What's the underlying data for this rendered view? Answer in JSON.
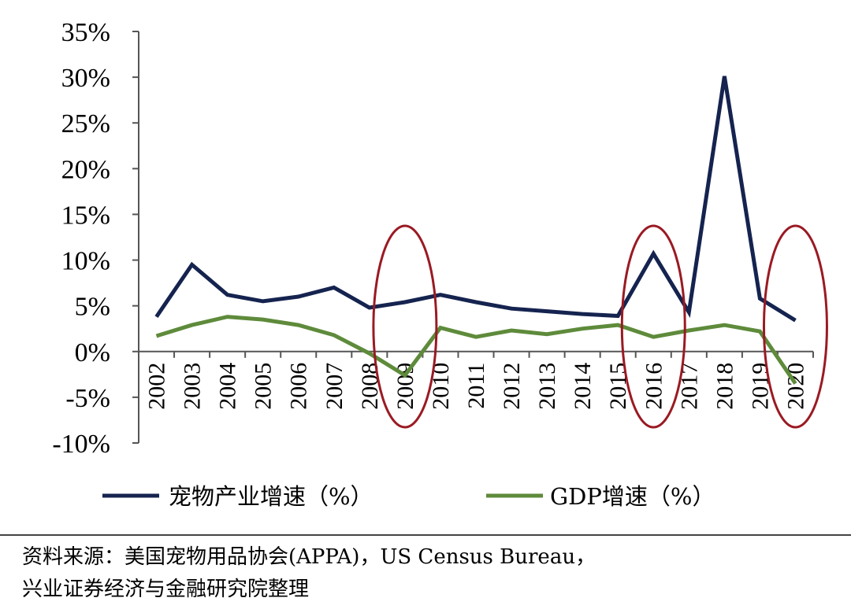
{
  "chart_data": {
    "type": "line",
    "title": "",
    "xlabel": "",
    "ylabel": "",
    "categories": [
      "2002",
      "2003",
      "2004",
      "2005",
      "2006",
      "2007",
      "2008",
      "2009",
      "2010",
      "2011",
      "2012",
      "2013",
      "2014",
      "2015",
      "2016",
      "2017",
      "2018",
      "2019",
      "2020"
    ],
    "ylim": [
      -10,
      35
    ],
    "ytick_values": [
      35,
      30,
      25,
      20,
      15,
      10,
      5,
      0,
      -5,
      -10
    ],
    "ytick_labels": [
      "35%",
      "30%",
      "25%",
      "20%",
      "15%",
      "10%",
      "5%",
      "0%",
      "-5%",
      "-10%"
    ],
    "series": [
      {
        "name": "宠物产业增速（%）",
        "color": "#15234f",
        "values": [
          3.8,
          9.5,
          6.2,
          5.5,
          6.0,
          7.0,
          4.8,
          5.4,
          6.2,
          5.4,
          4.7,
          4.4,
          4.1,
          3.9,
          10.7,
          4.3,
          30.1,
          5.8,
          3.4
        ]
      },
      {
        "name": "GDP增速（%）",
        "color": "#5e8b3b",
        "values": [
          1.7,
          2.9,
          3.8,
          3.5,
          2.9,
          1.8,
          -0.2,
          -2.6,
          2.6,
          1.6,
          2.3,
          1.9,
          2.5,
          2.9,
          1.6,
          2.3,
          2.9,
          2.2,
          -3.5
        ]
      }
    ],
    "annotations": {
      "highlight_years": [
        "2009",
        "2016",
        "2020"
      ],
      "highlight_color": "#9a1a23"
    },
    "legend_position": "bottom"
  },
  "source_note": {
    "line1": "资料来源：美国宠物用品协会(APPA)，US Census Bureau，",
    "line2": "兴业证券经济与金融研究院整理"
  }
}
